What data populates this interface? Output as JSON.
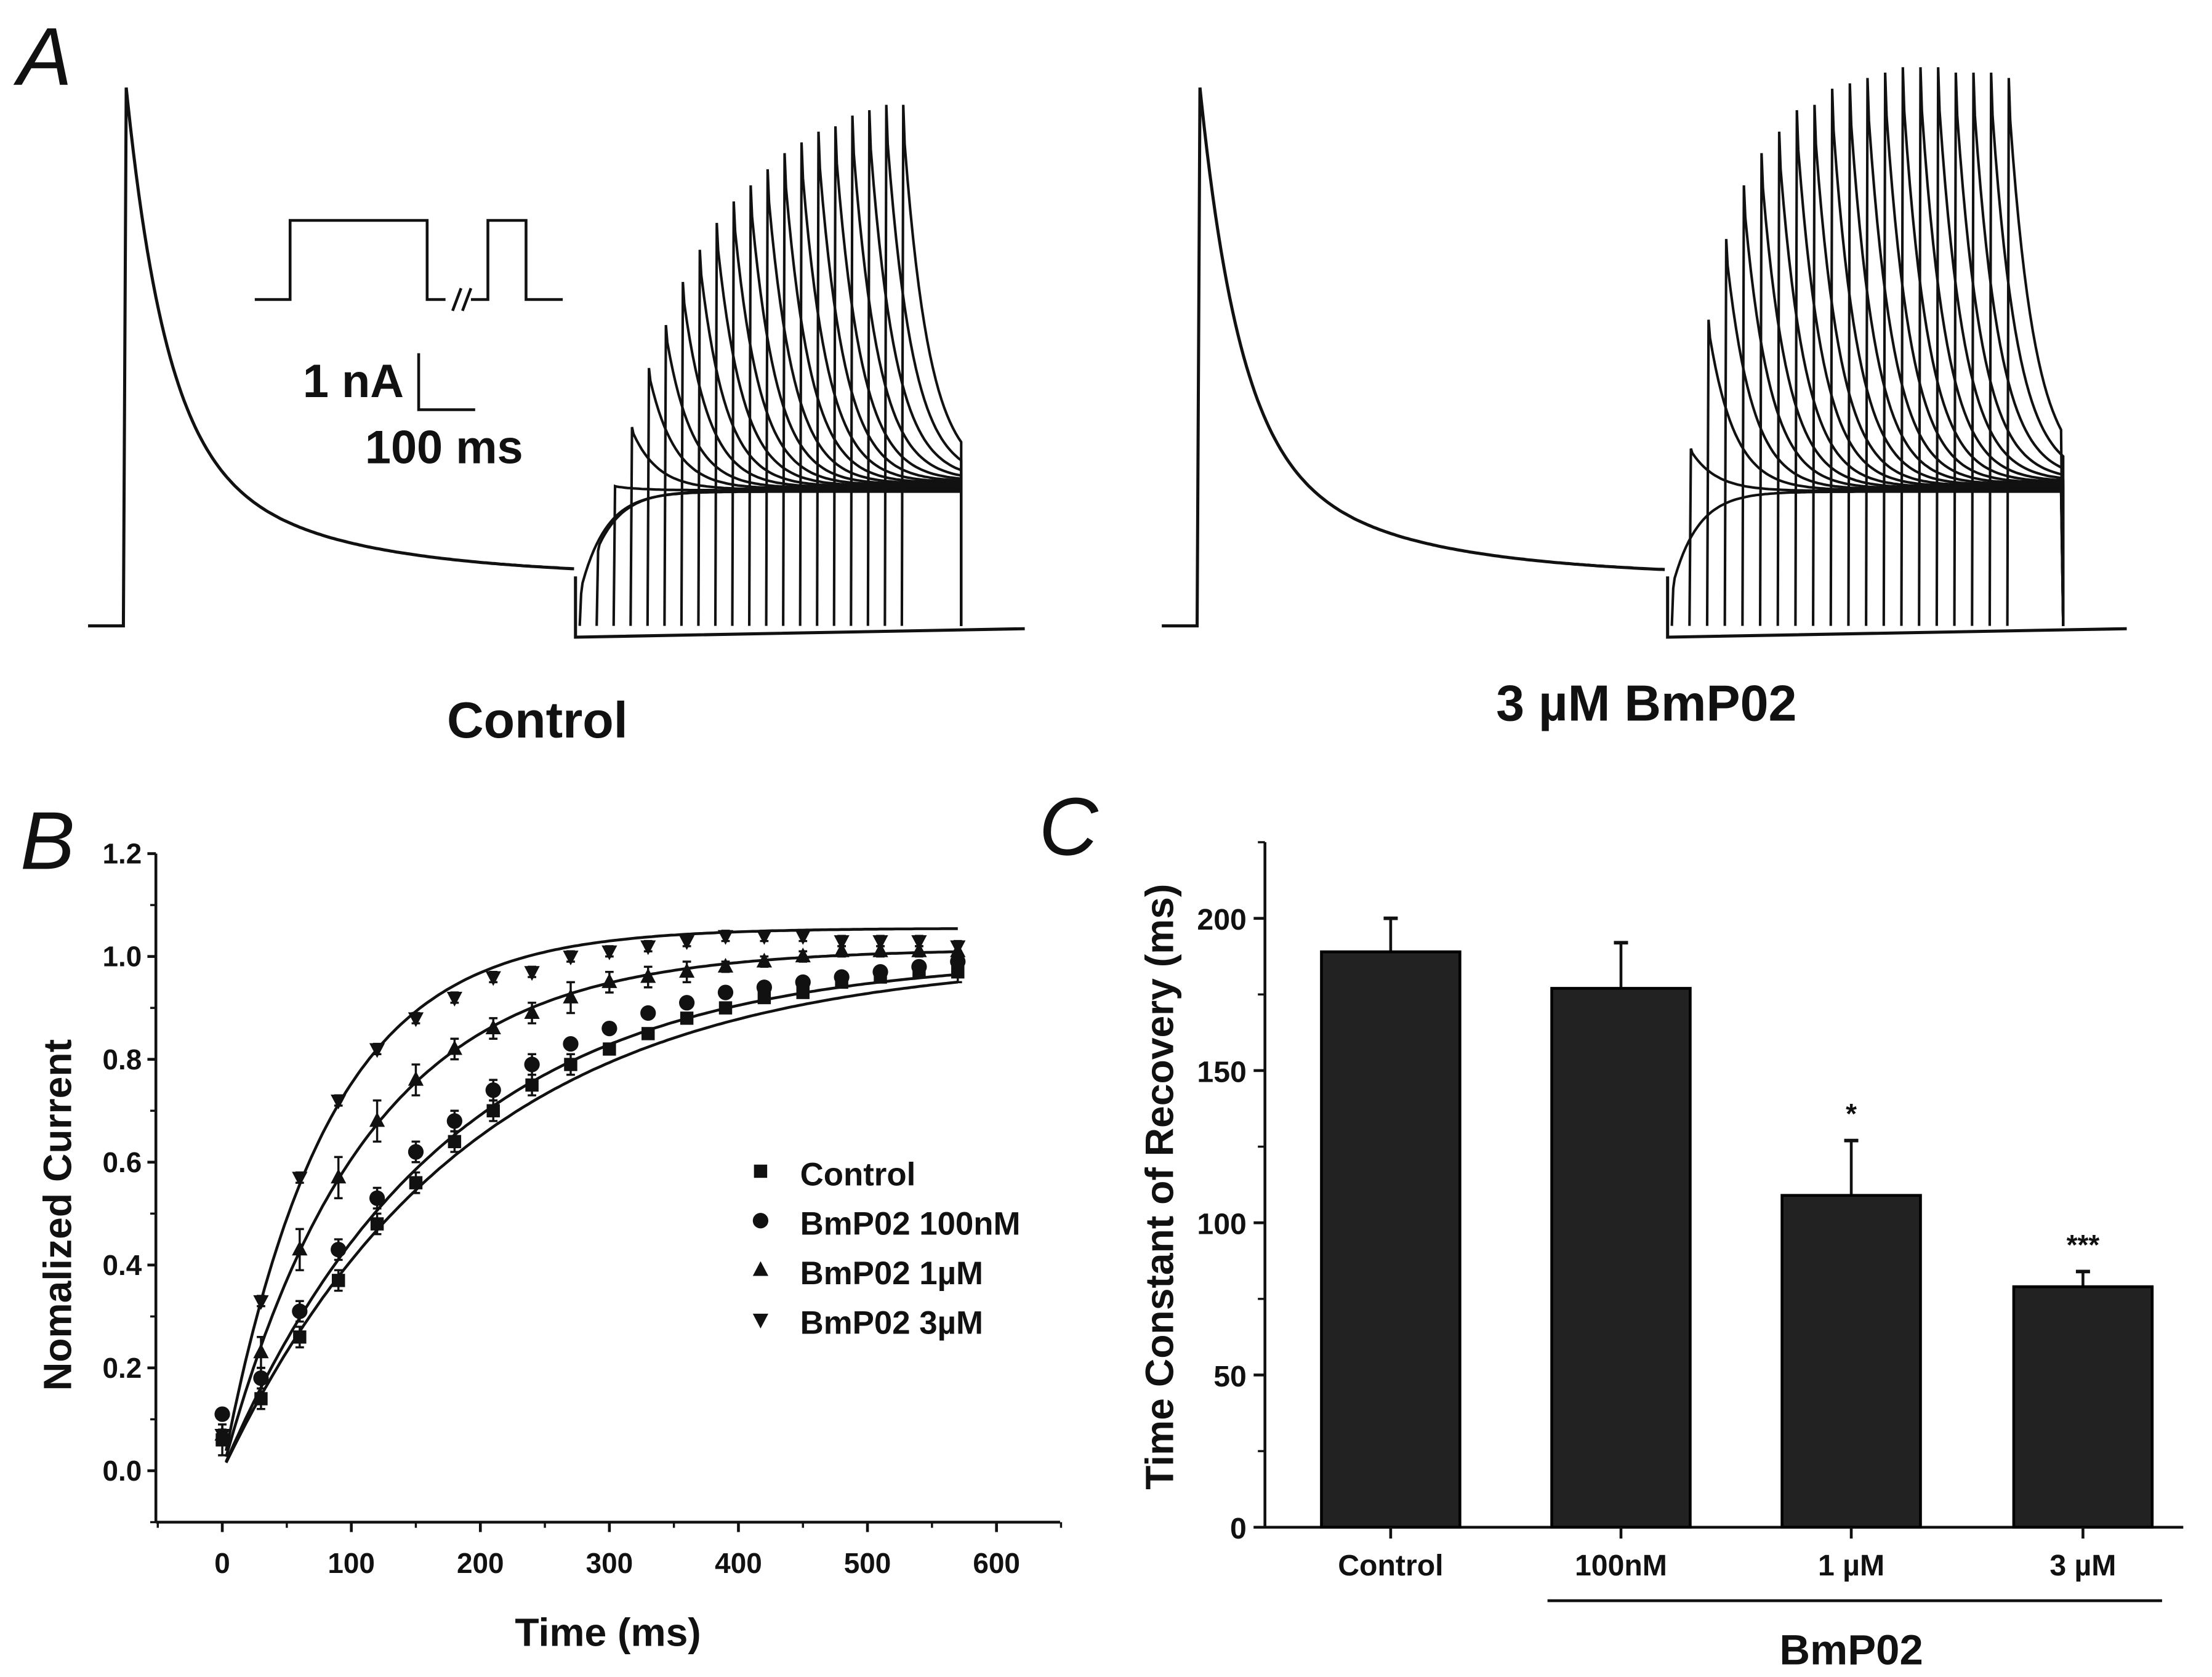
{
  "panel_labels": {
    "a": "A",
    "b": "B",
    "c": "C"
  },
  "panel_a": {
    "left_label": "Control",
    "right_label": "3 µM BmP02",
    "scale_current": "1 nA",
    "scale_time": "100 ms"
  },
  "chart_data": [
    {
      "type": "scatter",
      "panel": "B",
      "xlabel": "Time (ms)",
      "ylabel": "Nomalized Current",
      "xlim": [
        -50,
        650
      ],
      "ylim": [
        -0.1,
        1.2
      ],
      "xticks": [
        "0",
        "100",
        "200",
        "300",
        "400",
        "500",
        "600"
      ],
      "yticks": [
        "0.0",
        "0.2",
        "0.4",
        "0.6",
        "0.8",
        "1.0",
        "1.2"
      ],
      "legend_position": "center-right",
      "x": [
        0,
        30,
        60,
        90,
        120,
        150,
        180,
        210,
        240,
        270,
        300,
        330,
        360,
        390,
        420,
        450,
        480,
        510,
        540,
        570
      ],
      "series": [
        {
          "name": "Control",
          "marker": "square",
          "fit": {
            "A": 1.0,
            "tau": 190
          },
          "values": [
            0.06,
            0.14,
            0.26,
            0.37,
            0.48,
            0.56,
            0.64,
            0.7,
            0.75,
            0.79,
            0.82,
            0.85,
            0.88,
            0.9,
            0.92,
            0.93,
            0.95,
            0.96,
            0.97,
            0.97
          ],
          "sem": [
            0.03,
            0.02,
            0.02,
            0.02,
            0.02,
            0.02,
            0.02,
            0.02,
            0.02,
            0.02,
            0.01,
            0.01,
            0.01,
            0.01,
            0.01,
            0.01,
            0.01,
            0.01,
            0.01,
            0.02
          ]
        },
        {
          "name": "BmP02 100nM",
          "marker": "circle",
          "fit": {
            "A": 1.0,
            "tau": 170
          },
          "values": [
            0.11,
            0.18,
            0.31,
            0.43,
            0.53,
            0.62,
            0.68,
            0.74,
            0.79,
            0.83,
            0.86,
            0.89,
            0.91,
            0.93,
            0.94,
            0.95,
            0.96,
            0.97,
            0.98,
            0.99
          ],
          "sem": [
            0.01,
            0.02,
            0.02,
            0.02,
            0.02,
            0.02,
            0.02,
            0.02,
            0.02,
            0.01,
            0.01,
            0.01,
            0.01,
            0.01,
            0.01,
            0.01,
            0.01,
            0.01,
            0.01,
            0.01
          ]
        },
        {
          "name": "BmP02 1µM",
          "marker": "triangle-up",
          "fit": {
            "A": 1.015,
            "tau": 110
          },
          "values": [
            0.07,
            0.23,
            0.43,
            0.57,
            0.68,
            0.76,
            0.82,
            0.86,
            0.89,
            0.92,
            0.95,
            0.96,
            0.97,
            0.98,
            0.99,
            1.0,
            1.01,
            1.01,
            1.01,
            1.01
          ],
          "sem": [
            0.02,
            0.03,
            0.04,
            0.04,
            0.04,
            0.03,
            0.02,
            0.02,
            0.02,
            0.03,
            0.02,
            0.02,
            0.02,
            0.01,
            0.01,
            0.01,
            0.01,
            0.01,
            0.01,
            0.01
          ]
        },
        {
          "name": "BmP02 3µM",
          "marker": "triangle-down",
          "fit": {
            "A": 1.055,
            "tau": 80
          },
          "values": [
            0.07,
            0.33,
            0.57,
            0.72,
            0.82,
            0.88,
            0.92,
            0.96,
            0.97,
            1.0,
            1.01,
            1.02,
            1.03,
            1.04,
            1.04,
            1.04,
            1.03,
            1.03,
            1.03,
            1.02
          ],
          "sem": [
            0.01,
            0.01,
            0.01,
            0.01,
            0.01,
            0.01,
            0.01,
            0.01,
            0.01,
            0.01,
            0.01,
            0.01,
            0.01,
            0.01,
            0.01,
            0.01,
            0.01,
            0.01,
            0.01,
            0.01
          ]
        }
      ]
    },
    {
      "type": "bar",
      "panel": "C",
      "ylabel": "Time Constant of Recovery (ms)",
      "ylim": [
        0,
        225
      ],
      "yticks": [
        "0",
        "50",
        "100",
        "150",
        "200"
      ],
      "categories": [
        "Control",
        "100nM",
        "1 µM",
        "3 µM"
      ],
      "values": [
        189,
        177,
        109,
        79
      ],
      "errors": [
        11,
        15,
        18,
        5
      ],
      "annotations": [
        "",
        "",
        "*",
        "***"
      ],
      "group_label": "BmP02",
      "bar_color": "#222222"
    }
  ]
}
